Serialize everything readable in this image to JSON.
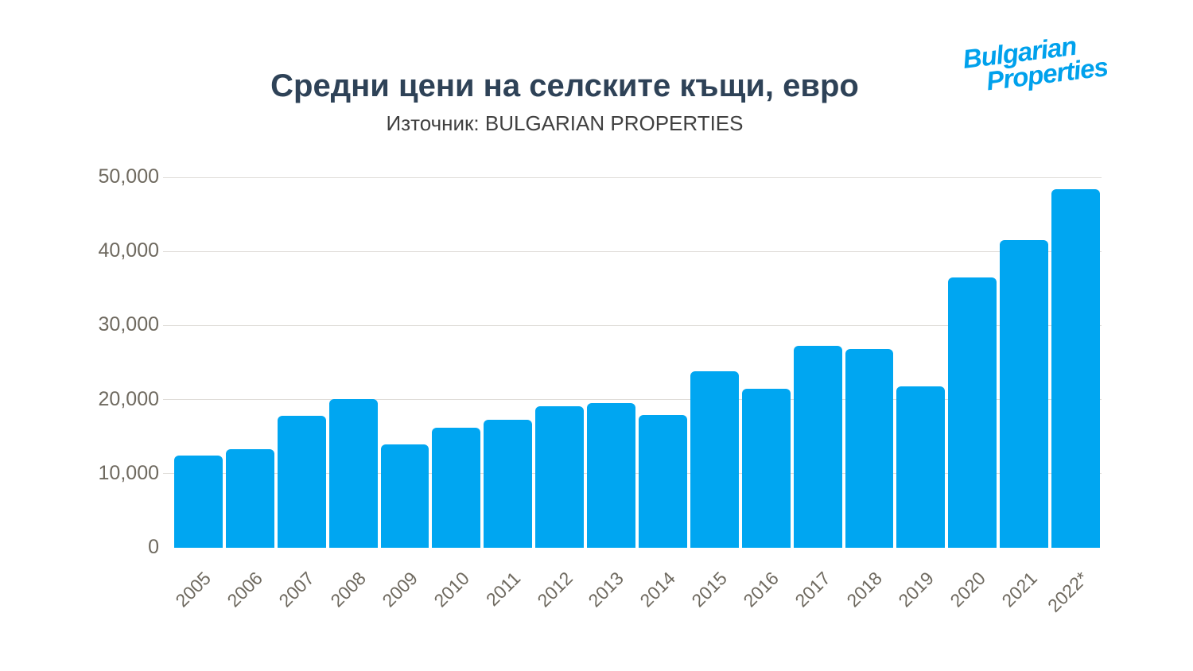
{
  "header": {
    "title": "Средни цени на селските къщи, евро",
    "subtitle": "Източник: BULGARIAN PROPERTIES",
    "title_color": "#2e4257",
    "subtitle_color": "#404040"
  },
  "logo": {
    "line1": "Bulgarian",
    "line2": "Properties",
    "color": "#00a1ec"
  },
  "chart_data": {
    "type": "bar",
    "title": "Средни цени на селските къщи, евро",
    "subtitle": "Източник: BULGARIAN PROPERTIES",
    "categories": [
      "2005",
      "2006",
      "2007",
      "2008",
      "2009",
      "2010",
      "2011",
      "2012",
      "2013",
      "2014",
      "2015",
      "2016",
      "2017",
      "2018",
      "2019",
      "2020",
      "2021",
      "2022*"
    ],
    "values": [
      12500,
      13300,
      17800,
      20100,
      13900,
      16200,
      17300,
      19100,
      19500,
      17900,
      23800,
      21500,
      27300,
      26800,
      21800,
      36500,
      41500,
      48400
    ],
    "bar_color": "#00a6f1",
    "xlabel": "",
    "ylabel": "",
    "ylim": [
      0,
      50000
    ],
    "yticks": [
      0,
      10000,
      20000,
      30000,
      40000,
      50000
    ],
    "ytick_labels": [
      "0",
      "10,000",
      "20,000",
      "30,000",
      "40,000",
      "50,000"
    ],
    "grid": "horizontal",
    "gridline_color": "#e0ddd9",
    "axis_label_color": "#6e695f",
    "legend": "none"
  }
}
